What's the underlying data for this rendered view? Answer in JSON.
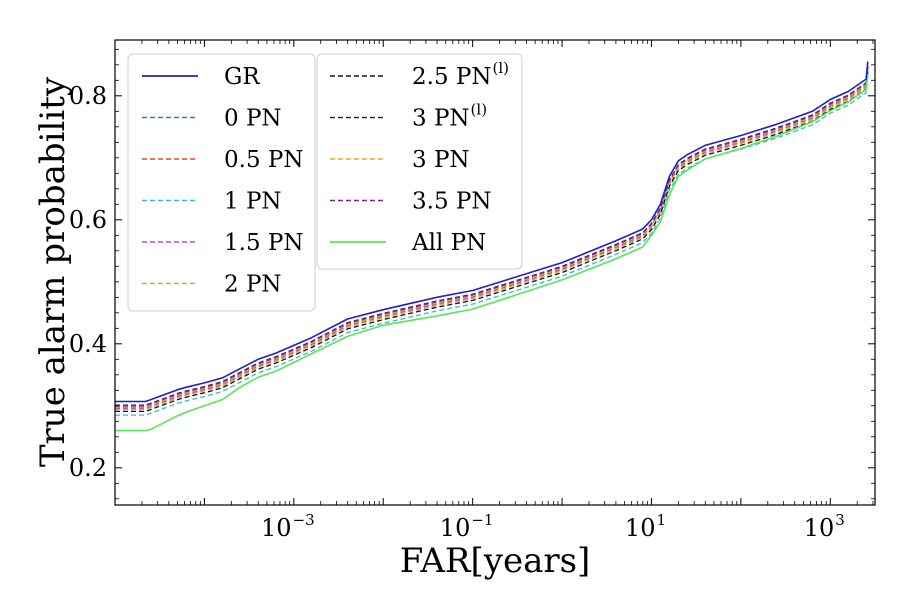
{
  "chart_data": {
    "type": "line",
    "title": "",
    "xlabel": "FAR[years]",
    "ylabel": "True alarm probability",
    "xscale": "log",
    "xlim_log10": [
      -5.0,
      3.5
    ],
    "ylim": [
      0.14,
      0.89
    ],
    "x_tick_labels": [
      {
        "exp": -3,
        "base": "10",
        "sup": "−3"
      },
      {
        "exp": -1,
        "base": "10",
        "sup": "−1"
      },
      {
        "exp": 1,
        "base": "10",
        "sup": "1"
      },
      {
        "exp": 3,
        "base": "10",
        "sup": "3"
      }
    ],
    "y_ticks": [
      0.2,
      0.4,
      0.6,
      0.8
    ],
    "y_tick_labels": [
      "0.2",
      "0.4",
      "0.6",
      "0.8"
    ],
    "legend_position": "top-left",
    "x_log10": [
      -5.0,
      -4.66,
      -4.6,
      -4.3,
      -4.2,
      -4.0,
      -3.8,
      -3.6,
      -3.4,
      -3.2,
      -2.8,
      -2.4,
      -2.0,
      -1.4,
      -1.0,
      0.0,
      0.6,
      0.9,
      1.0,
      1.1,
      1.2,
      1.3,
      1.4,
      1.6,
      2.0,
      2.4,
      2.8,
      3.0,
      3.2,
      3.4,
      3.42
    ],
    "series": [
      {
        "name": "GR",
        "color": "#1f1fc8",
        "dash": "solid",
        "values": [
          0.307,
          0.307,
          0.31,
          0.326,
          0.33,
          0.337,
          0.345,
          0.36,
          0.375,
          0.385,
          0.41,
          0.44,
          0.455,
          0.475,
          0.486,
          0.531,
          0.566,
          0.585,
          0.6,
          0.625,
          0.67,
          0.695,
          0.705,
          0.72,
          0.736,
          0.754,
          0.775,
          0.794,
          0.807,
          0.827,
          0.855
        ]
      },
      {
        "name": "0 PN",
        "color": "#2a9b2a",
        "dash": "dashed",
        "values": [
          0.297,
          0.297,
          0.3,
          0.316,
          0.32,
          0.327,
          0.335,
          0.35,
          0.365,
          0.375,
          0.4,
          0.43,
          0.445,
          0.465,
          0.476,
          0.521,
          0.556,
          0.575,
          0.59,
          0.615,
          0.66,
          0.685,
          0.695,
          0.71,
          0.726,
          0.744,
          0.765,
          0.784,
          0.797,
          0.817,
          0.845
        ]
      },
      {
        "name": "0.5 PN",
        "color": "#e8413a",
        "dash": "dashed",
        "values": [
          0.299,
          0.299,
          0.302,
          0.318,
          0.322,
          0.329,
          0.337,
          0.352,
          0.367,
          0.377,
          0.402,
          0.432,
          0.447,
          0.467,
          0.478,
          0.523,
          0.558,
          0.577,
          0.592,
          0.617,
          0.662,
          0.687,
          0.697,
          0.712,
          0.728,
          0.746,
          0.767,
          0.786,
          0.799,
          0.819,
          0.847
        ]
      },
      {
        "name": "1 PN",
        "color": "#3fb8c8",
        "dash": "dashed",
        "values": [
          0.285,
          0.285,
          0.288,
          0.304,
          0.308,
          0.315,
          0.323,
          0.338,
          0.353,
          0.363,
          0.388,
          0.418,
          0.433,
          0.453,
          0.464,
          0.509,
          0.544,
          0.563,
          0.578,
          0.603,
          0.648,
          0.673,
          0.683,
          0.698,
          0.714,
          0.732,
          0.753,
          0.772,
          0.785,
          0.805,
          0.833
        ]
      },
      {
        "name": "1.5 PN",
        "color": "#d23ed2",
        "dash": "dashed",
        "values": [
          0.296,
          0.296,
          0.299,
          0.315,
          0.319,
          0.326,
          0.334,
          0.349,
          0.364,
          0.374,
          0.399,
          0.429,
          0.444,
          0.464,
          0.475,
          0.52,
          0.555,
          0.574,
          0.589,
          0.614,
          0.659,
          0.684,
          0.694,
          0.709,
          0.725,
          0.743,
          0.764,
          0.783,
          0.796,
          0.816,
          0.844
        ]
      },
      {
        "name": "2 PN",
        "color": "#c8b232",
        "dash": "dashed",
        "values": [
          0.294,
          0.294,
          0.297,
          0.313,
          0.317,
          0.324,
          0.332,
          0.347,
          0.362,
          0.372,
          0.397,
          0.427,
          0.442,
          0.462,
          0.473,
          0.518,
          0.553,
          0.572,
          0.587,
          0.612,
          0.657,
          0.682,
          0.692,
          0.707,
          0.723,
          0.741,
          0.762,
          0.781,
          0.794,
          0.814,
          0.842
        ]
      },
      {
        "name": "2.5 PN",
        "sup": "(l)",
        "color": "#111111",
        "dash": "dashed",
        "values": [
          0.291,
          0.291,
          0.294,
          0.31,
          0.314,
          0.321,
          0.329,
          0.344,
          0.359,
          0.369,
          0.394,
          0.424,
          0.439,
          0.459,
          0.47,
          0.515,
          0.55,
          0.569,
          0.584,
          0.609,
          0.654,
          0.679,
          0.689,
          0.704,
          0.72,
          0.738,
          0.759,
          0.778,
          0.791,
          0.811,
          0.839
        ]
      },
      {
        "name": "3 PN",
        "sup": "(l)",
        "color": "#1c1c78",
        "dash": "dashed",
        "values": [
          0.301,
          0.301,
          0.304,
          0.32,
          0.324,
          0.331,
          0.339,
          0.354,
          0.369,
          0.379,
          0.404,
          0.434,
          0.449,
          0.469,
          0.48,
          0.525,
          0.56,
          0.579,
          0.594,
          0.619,
          0.664,
          0.689,
          0.699,
          0.714,
          0.73,
          0.748,
          0.769,
          0.788,
          0.801,
          0.821,
          0.849
        ]
      },
      {
        "name": "3 PN",
        "color": "#f0a030",
        "dash": "dashed",
        "values": [
          0.298,
          0.298,
          0.301,
          0.317,
          0.321,
          0.328,
          0.336,
          0.351,
          0.366,
          0.376,
          0.401,
          0.431,
          0.446,
          0.466,
          0.477,
          0.522,
          0.557,
          0.576,
          0.591,
          0.616,
          0.661,
          0.686,
          0.696,
          0.711,
          0.727,
          0.745,
          0.766,
          0.785,
          0.798,
          0.818,
          0.846
        ]
      },
      {
        "name": "3.5 PN",
        "color": "#7a2a8a",
        "dash": "dashed",
        "values": [
          0.3,
          0.3,
          0.303,
          0.319,
          0.323,
          0.33,
          0.338,
          0.353,
          0.368,
          0.378,
          0.403,
          0.433,
          0.448,
          0.468,
          0.479,
          0.524,
          0.559,
          0.578,
          0.593,
          0.618,
          0.663,
          0.688,
          0.698,
          0.713,
          0.729,
          0.747,
          0.768,
          0.787,
          0.8,
          0.82,
          0.848
        ]
      },
      {
        "name": "All PN",
        "color": "#55e855",
        "dash": "solid",
        "values": [
          0.26,
          0.26,
          0.262,
          0.284,
          0.29,
          0.3,
          0.31,
          0.33,
          0.346,
          0.356,
          0.384,
          0.412,
          0.43,
          0.445,
          0.456,
          0.503,
          0.537,
          0.556,
          0.575,
          0.597,
          0.64,
          0.67,
          0.68,
          0.698,
          0.715,
          0.735,
          0.758,
          0.776,
          0.79,
          0.81,
          0.836
        ]
      }
    ]
  }
}
